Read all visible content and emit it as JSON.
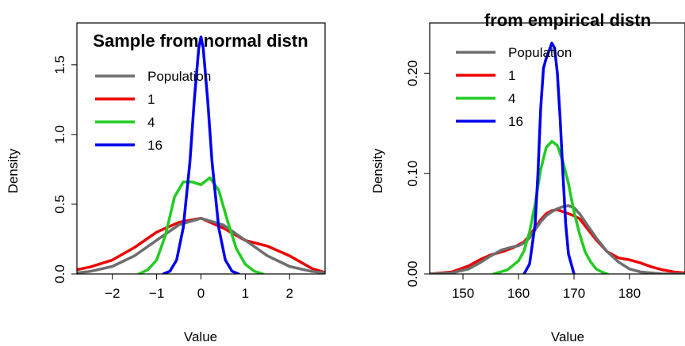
{
  "chart_data": [
    {
      "type": "line",
      "title": "Sample from normal distn",
      "xlabel": "Value",
      "ylabel": "Density",
      "xlim": [
        -2.8,
        2.8
      ],
      "ylim": [
        0,
        1.8
      ],
      "xticks": [
        -2,
        -1,
        0,
        1,
        2
      ],
      "xtick_labels": [
        "−2",
        "−1",
        "0",
        "1",
        "2"
      ],
      "yticks": [
        0.0,
        0.5,
        1.0,
        1.5
      ],
      "ytick_labels": [
        "0.0",
        "0.5",
        "1.0",
        "1.5"
      ],
      "legend_position": "top-left",
      "series": [
        {
          "name": "Population",
          "color": "#6e6e6e",
          "x": [
            -2.8,
            -2.5,
            -2.0,
            -1.5,
            -1.0,
            -0.5,
            0.0,
            0.5,
            1.0,
            1.5,
            2.0,
            2.5,
            2.8
          ],
          "y": [
            0.008,
            0.018,
            0.054,
            0.13,
            0.242,
            0.352,
            0.399,
            0.352,
            0.242,
            0.13,
            0.054,
            0.018,
            0.008
          ]
        },
        {
          "name": "1",
          "color": "#ee0000",
          "x": [
            -2.8,
            -2.5,
            -2.0,
            -1.5,
            -1.0,
            -0.5,
            0.0,
            0.5,
            1.0,
            1.5,
            2.0,
            2.5,
            2.8
          ],
          "y": [
            0.03,
            0.05,
            0.1,
            0.19,
            0.3,
            0.37,
            0.4,
            0.33,
            0.24,
            0.2,
            0.13,
            0.04,
            0.01
          ]
        },
        {
          "name": "4",
          "color": "#22cc22",
          "x": [
            -1.4,
            -1.2,
            -1.0,
            -0.8,
            -0.6,
            -0.4,
            -0.2,
            0.0,
            0.2,
            0.4,
            0.6,
            0.8,
            1.0,
            1.2,
            1.4
          ],
          "y": [
            0.0,
            0.03,
            0.1,
            0.28,
            0.55,
            0.66,
            0.66,
            0.64,
            0.69,
            0.6,
            0.38,
            0.18,
            0.07,
            0.02,
            0.0
          ]
        },
        {
          "name": "16",
          "color": "#0000ee",
          "x": [
            -0.85,
            -0.7,
            -0.55,
            -0.4,
            -0.25,
            -0.15,
            -0.05,
            0.0,
            0.05,
            0.15,
            0.25,
            0.4,
            0.55,
            0.7,
            0.85
          ],
          "y": [
            0.0,
            0.02,
            0.1,
            0.33,
            0.8,
            1.25,
            1.62,
            1.7,
            1.62,
            1.25,
            0.8,
            0.33,
            0.1,
            0.02,
            0.0
          ]
        }
      ]
    },
    {
      "type": "line",
      "title": "from empirical distn",
      "xlabel": "Value",
      "ylabel": "Density",
      "xlim": [
        144,
        190
      ],
      "ylim": [
        0,
        0.25
      ],
      "xticks": [
        150,
        160,
        170,
        180
      ],
      "xtick_labels": [
        "150",
        "160",
        "170",
        "180"
      ],
      "yticks": [
        0.0,
        0.1,
        0.2
      ],
      "ytick_labels": [
        "0.00",
        "0.10",
        "0.20"
      ],
      "legend_position": "top-left",
      "series": [
        {
          "name": "Population",
          "color": "#6e6e6e",
          "x": [
            144,
            148,
            151,
            153,
            155,
            157,
            159,
            160,
            161,
            162,
            163,
            164,
            165,
            166,
            167,
            168,
            169,
            170,
            171,
            172,
            174,
            176,
            178,
            180,
            182,
            184,
            186,
            190
          ],
          "y": [
            0.0,
            0.001,
            0.005,
            0.011,
            0.018,
            0.024,
            0.027,
            0.028,
            0.031,
            0.036,
            0.044,
            0.052,
            0.058,
            0.062,
            0.065,
            0.067,
            0.068,
            0.066,
            0.06,
            0.052,
            0.036,
            0.022,
            0.012,
            0.005,
            0.002,
            0.001,
            0.0,
            0.0
          ]
        },
        {
          "name": "1",
          "color": "#ee0000",
          "x": [
            144,
            148,
            151,
            153,
            155,
            157,
            159,
            161,
            162,
            163,
            164,
            165,
            166,
            167,
            168,
            169,
            170,
            171,
            172,
            174,
            176,
            178,
            180,
            182,
            184,
            186,
            188,
            190
          ],
          "y": [
            0.0,
            0.002,
            0.008,
            0.014,
            0.019,
            0.022,
            0.026,
            0.032,
            0.038,
            0.046,
            0.054,
            0.06,
            0.063,
            0.064,
            0.062,
            0.06,
            0.058,
            0.055,
            0.048,
            0.034,
            0.022,
            0.016,
            0.014,
            0.011,
            0.007,
            0.004,
            0.002,
            0.001
          ]
        },
        {
          "name": "4",
          "color": "#22cc22",
          "x": [
            155.5,
            158,
            160,
            161,
            162,
            163,
            164,
            165,
            166,
            167,
            168,
            169,
            170,
            171,
            172,
            173,
            174,
            175,
            176
          ],
          "y": [
            0.0,
            0.004,
            0.013,
            0.023,
            0.042,
            0.07,
            0.104,
            0.126,
            0.132,
            0.128,
            0.112,
            0.09,
            0.062,
            0.04,
            0.022,
            0.012,
            0.005,
            0.002,
            0.0
          ]
        },
        {
          "name": "16",
          "color": "#0000ee",
          "x": [
            161,
            162,
            163,
            163.5,
            164,
            164.5,
            165,
            165.5,
            166,
            166.5,
            167,
            167.5,
            168,
            168.5,
            169,
            170
          ],
          "y": [
            0.0,
            0.01,
            0.05,
            0.1,
            0.165,
            0.205,
            0.215,
            0.222,
            0.23,
            0.225,
            0.2,
            0.155,
            0.1,
            0.05,
            0.02,
            0.0
          ]
        }
      ]
    }
  ]
}
